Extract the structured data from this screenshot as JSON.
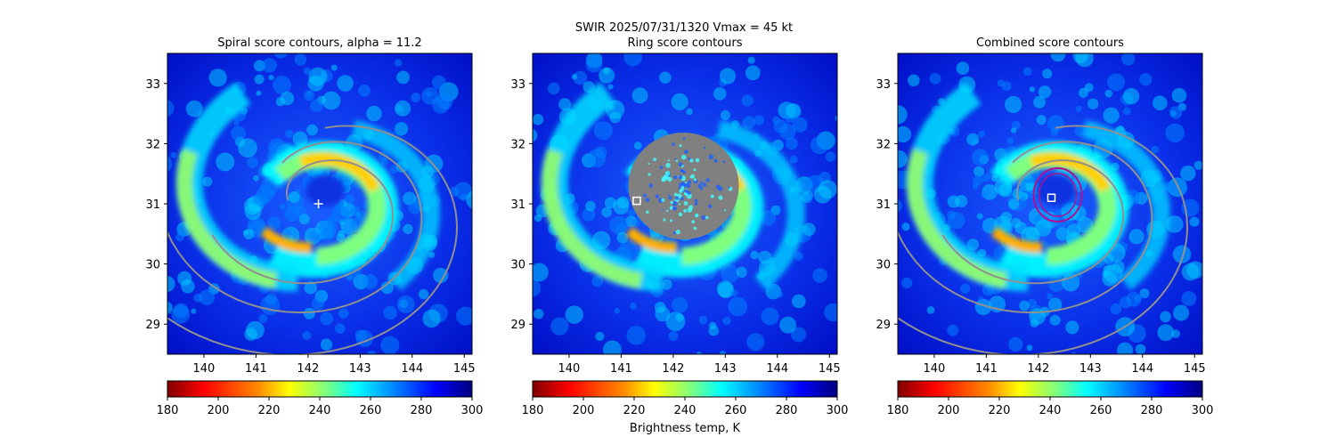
{
  "figure": {
    "suptitle_line1": "SWIR  2025/07/31/1320    Vmax = 45 kt",
    "colorbar_label": "Brightness temp, K"
  },
  "chart_data": [
    {
      "type": "heatmap",
      "title": "Spiral score contours, alpha = 11.2",
      "xlabel": "",
      "ylabel": "",
      "xlim": [
        139.3,
        145.15
      ],
      "ylim": [
        28.5,
        33.5
      ],
      "xticks": [
        140,
        141,
        142,
        143,
        144,
        145
      ],
      "yticks": [
        29,
        30,
        31,
        32,
        33
      ],
      "overlay": "spiral contours",
      "center_marker": {
        "lon": 142.2,
        "lat": 31.0,
        "marker": "+"
      },
      "colorbar": {
        "label": "",
        "ticks": [
          180,
          200,
          220,
          240,
          260,
          280,
          300
        ],
        "range": [
          180,
          300
        ],
        "colormap": "jet_r"
      }
    },
    {
      "type": "heatmap",
      "title": "Ring score contours",
      "xlabel": "",
      "ylabel": "",
      "xlim": [
        139.3,
        145.15
      ],
      "ylim": [
        28.5,
        33.5
      ],
      "xticks": [
        140,
        141,
        142,
        143,
        144,
        145
      ],
      "yticks": [
        29,
        30,
        31,
        32,
        33
      ],
      "overlay": "ring score (filled)",
      "center_marker": {
        "lon": 141.3,
        "lat": 31.05,
        "marker": "square"
      },
      "colorbar": {
        "label": "Brightness temp, K",
        "ticks": [
          180,
          200,
          220,
          240,
          260,
          280,
          300
        ],
        "range": [
          180,
          300
        ],
        "colormap": "jet_r"
      }
    },
    {
      "type": "heatmap",
      "title": "Combined score contours",
      "xlabel": "",
      "ylabel": "",
      "xlim": [
        139.3,
        145.15
      ],
      "ylim": [
        28.5,
        33.5
      ],
      "xticks": [
        140,
        141,
        142,
        143,
        144,
        145
      ],
      "yticks": [
        29,
        30,
        31,
        32,
        33
      ],
      "overlay": "combined contours",
      "center_marker": {
        "lon": 142.25,
        "lat": 31.1,
        "marker": "square"
      },
      "colorbar": {
        "label": "",
        "ticks": [
          180,
          200,
          220,
          240,
          260,
          280,
          300
        ],
        "range": [
          180,
          300
        ],
        "colormap": "jet_r"
      }
    }
  ]
}
